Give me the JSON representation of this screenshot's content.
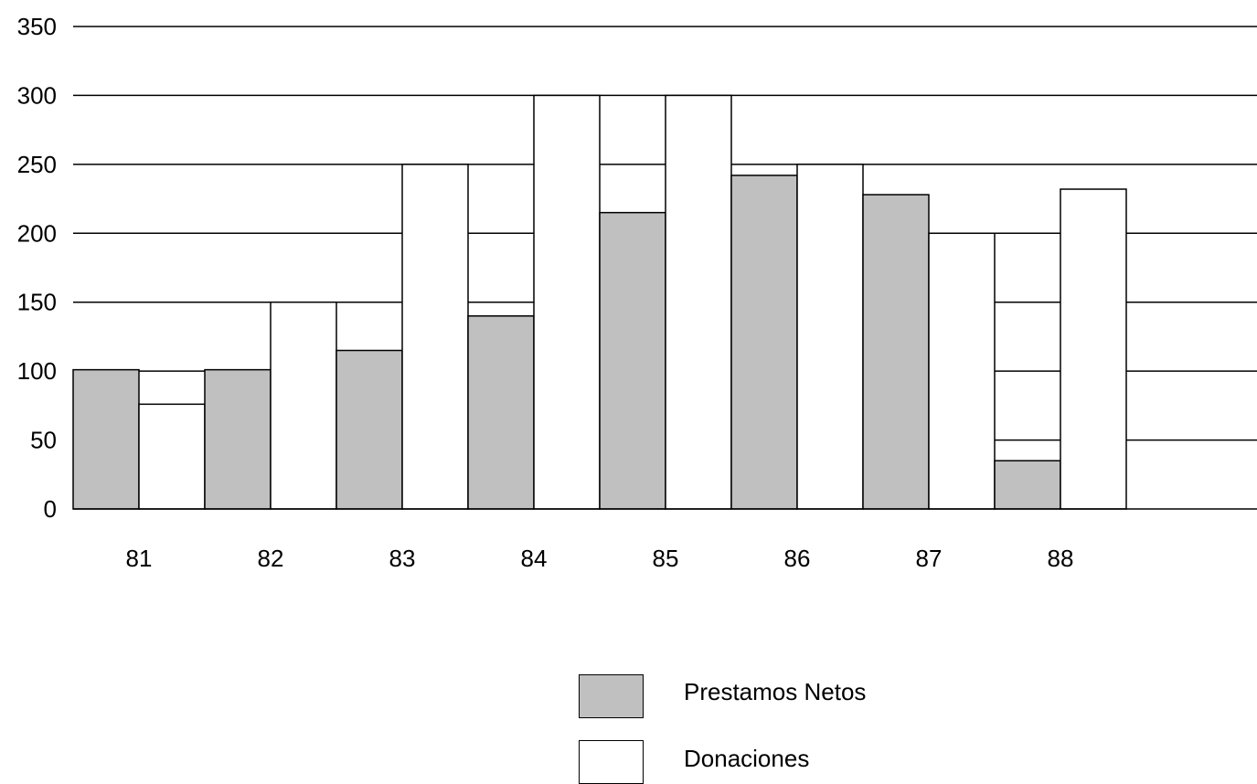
{
  "chart_data": {
    "type": "bar",
    "categories": [
      "81",
      "82",
      "83",
      "84",
      "85",
      "86",
      "87",
      "88"
    ],
    "series": [
      {
        "name": "Prestamos Netos",
        "color": "#c0c0c0",
        "values": [
          101,
          101,
          115,
          140,
          215,
          242,
          228,
          35
        ]
      },
      {
        "name": "Donaciones",
        "color": "#ffffff",
        "values": [
          76,
          150,
          250,
          300,
          300,
          250,
          200,
          232
        ]
      }
    ],
    "ylim": [
      0,
      350
    ],
    "yticks": [
      "0",
      "50",
      "100",
      "150",
      "200",
      "250",
      "300",
      "350"
    ],
    "grid": true,
    "legend_position": "bottom"
  }
}
